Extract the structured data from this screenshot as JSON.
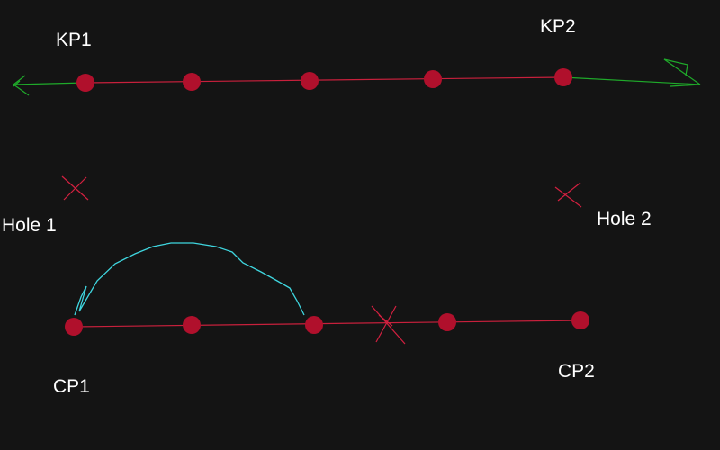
{
  "colors": {
    "background": "#141414",
    "line": "#c8203c",
    "node": "#b0102c",
    "arrow": "#1faa2a",
    "arc": "#3fd6df",
    "cross": "#d42040",
    "text": "#ffffff"
  },
  "labels": {
    "kp1": "KP1",
    "kp2": "KP2",
    "hole1": "Hole 1",
    "hole2": "Hole 2",
    "cp1": "CP1",
    "cp2": "CP2"
  },
  "top_line": {
    "node_count": 5,
    "extension_arrows": 2
  },
  "bottom_line": {
    "node_count": 5,
    "crossed_segment": "between node 3 and node 4",
    "arc_span": "node 1 to node 3"
  }
}
